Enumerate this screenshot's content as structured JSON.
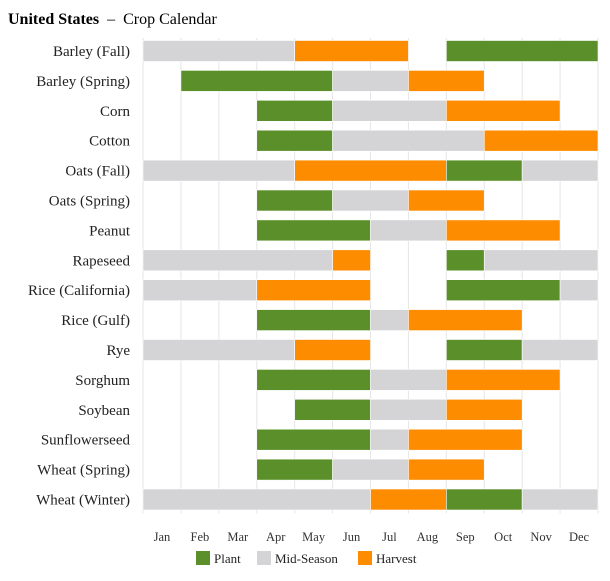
{
  "chart_data": {
    "type": "bar",
    "subtype": "gantt-crop-calendar",
    "title_country": "United States",
    "title_separator": "–",
    "title_rest": "Crop Calendar",
    "months": [
      "Jan",
      "Feb",
      "Mar",
      "Apr",
      "May",
      "Jun",
      "Jul",
      "Aug",
      "Sep",
      "Oct",
      "Nov",
      "Dec"
    ],
    "legend": [
      {
        "key": "plant",
        "label": "Plant",
        "color": "#5a8f29"
      },
      {
        "key": "mid",
        "label": "Mid-Season",
        "color": "#d4d3d5"
      },
      {
        "key": "harvest",
        "label": "Harvest",
        "color": "#fd8c00"
      }
    ],
    "crops": [
      {
        "name": "Barley (Fall)",
        "segments": [
          {
            "stage": "mid",
            "start": 0,
            "end": 4
          },
          {
            "stage": "harvest",
            "start": 4,
            "end": 7
          },
          {
            "stage": "plant",
            "start": 8,
            "end": 12
          }
        ]
      },
      {
        "name": "Barley (Spring)",
        "segments": [
          {
            "stage": "plant",
            "start": 1,
            "end": 5
          },
          {
            "stage": "mid",
            "start": 5,
            "end": 7
          },
          {
            "stage": "harvest",
            "start": 7,
            "end": 9
          }
        ]
      },
      {
        "name": "Corn",
        "segments": [
          {
            "stage": "plant",
            "start": 3,
            "end": 5
          },
          {
            "stage": "mid",
            "start": 5,
            "end": 8
          },
          {
            "stage": "harvest",
            "start": 8,
            "end": 11
          }
        ]
      },
      {
        "name": "Cotton",
        "segments": [
          {
            "stage": "plant",
            "start": 3,
            "end": 5
          },
          {
            "stage": "mid",
            "start": 5,
            "end": 9
          },
          {
            "stage": "harvest",
            "start": 9,
            "end": 12
          }
        ]
      },
      {
        "name": "Oats (Fall)",
        "segments": [
          {
            "stage": "mid",
            "start": 0,
            "end": 4
          },
          {
            "stage": "harvest",
            "start": 4,
            "end": 8
          },
          {
            "stage": "plant",
            "start": 8,
            "end": 10
          },
          {
            "stage": "mid",
            "start": 10,
            "end": 12
          }
        ]
      },
      {
        "name": "Oats (Spring)",
        "segments": [
          {
            "stage": "plant",
            "start": 3,
            "end": 5
          },
          {
            "stage": "mid",
            "start": 5,
            "end": 7
          },
          {
            "stage": "harvest",
            "start": 7,
            "end": 9
          }
        ]
      },
      {
        "name": "Peanut",
        "segments": [
          {
            "stage": "plant",
            "start": 3,
            "end": 6
          },
          {
            "stage": "mid",
            "start": 6,
            "end": 8
          },
          {
            "stage": "harvest",
            "start": 8,
            "end": 11
          }
        ]
      },
      {
        "name": "Rapeseed",
        "segments": [
          {
            "stage": "mid",
            "start": 0,
            "end": 5
          },
          {
            "stage": "harvest",
            "start": 5,
            "end": 6
          },
          {
            "stage": "plant",
            "start": 8,
            "end": 9
          },
          {
            "stage": "mid",
            "start": 9,
            "end": 12
          }
        ]
      },
      {
        "name": "Rice (California)",
        "segments": [
          {
            "stage": "mid",
            "start": 0,
            "end": 3
          },
          {
            "stage": "harvest",
            "start": 3,
            "end": 6
          },
          {
            "stage": "plant",
            "start": 8,
            "end": 11
          },
          {
            "stage": "mid",
            "start": 11,
            "end": 12
          }
        ]
      },
      {
        "name": "Rice (Gulf)",
        "segments": [
          {
            "stage": "plant",
            "start": 3,
            "end": 6
          },
          {
            "stage": "mid",
            "start": 6,
            "end": 7
          },
          {
            "stage": "harvest",
            "start": 7,
            "end": 10
          }
        ]
      },
      {
        "name": "Rye",
        "segments": [
          {
            "stage": "mid",
            "start": 0,
            "end": 4
          },
          {
            "stage": "harvest",
            "start": 4,
            "end": 6
          },
          {
            "stage": "plant",
            "start": 8,
            "end": 10
          },
          {
            "stage": "mid",
            "start": 10,
            "end": 12
          }
        ]
      },
      {
        "name": "Sorghum",
        "segments": [
          {
            "stage": "plant",
            "start": 3,
            "end": 6
          },
          {
            "stage": "mid",
            "start": 6,
            "end": 8
          },
          {
            "stage": "harvest",
            "start": 8,
            "end": 11
          }
        ]
      },
      {
        "name": "Soybean",
        "segments": [
          {
            "stage": "plant",
            "start": 4,
            "end": 6
          },
          {
            "stage": "mid",
            "start": 6,
            "end": 8
          },
          {
            "stage": "harvest",
            "start": 8,
            "end": 10
          }
        ]
      },
      {
        "name": "Sunflowerseed",
        "segments": [
          {
            "stage": "plant",
            "start": 3,
            "end": 6
          },
          {
            "stage": "mid",
            "start": 6,
            "end": 7
          },
          {
            "stage": "harvest",
            "start": 7,
            "end": 10
          }
        ]
      },
      {
        "name": "Wheat (Spring)",
        "segments": [
          {
            "stage": "plant",
            "start": 3,
            "end": 5
          },
          {
            "stage": "mid",
            "start": 5,
            "end": 7
          },
          {
            "stage": "harvest",
            "start": 7,
            "end": 9
          }
        ]
      },
      {
        "name": "Wheat (Winter)",
        "segments": [
          {
            "stage": "mid",
            "start": 0,
            "end": 6
          },
          {
            "stage": "harvest",
            "start": 6,
            "end": 8
          },
          {
            "stage": "plant",
            "start": 8,
            "end": 10
          },
          {
            "stage": "mid",
            "start": 10,
            "end": 12
          }
        ]
      }
    ],
    "xlabel": "",
    "ylabel": "",
    "grid": "vertical"
  }
}
